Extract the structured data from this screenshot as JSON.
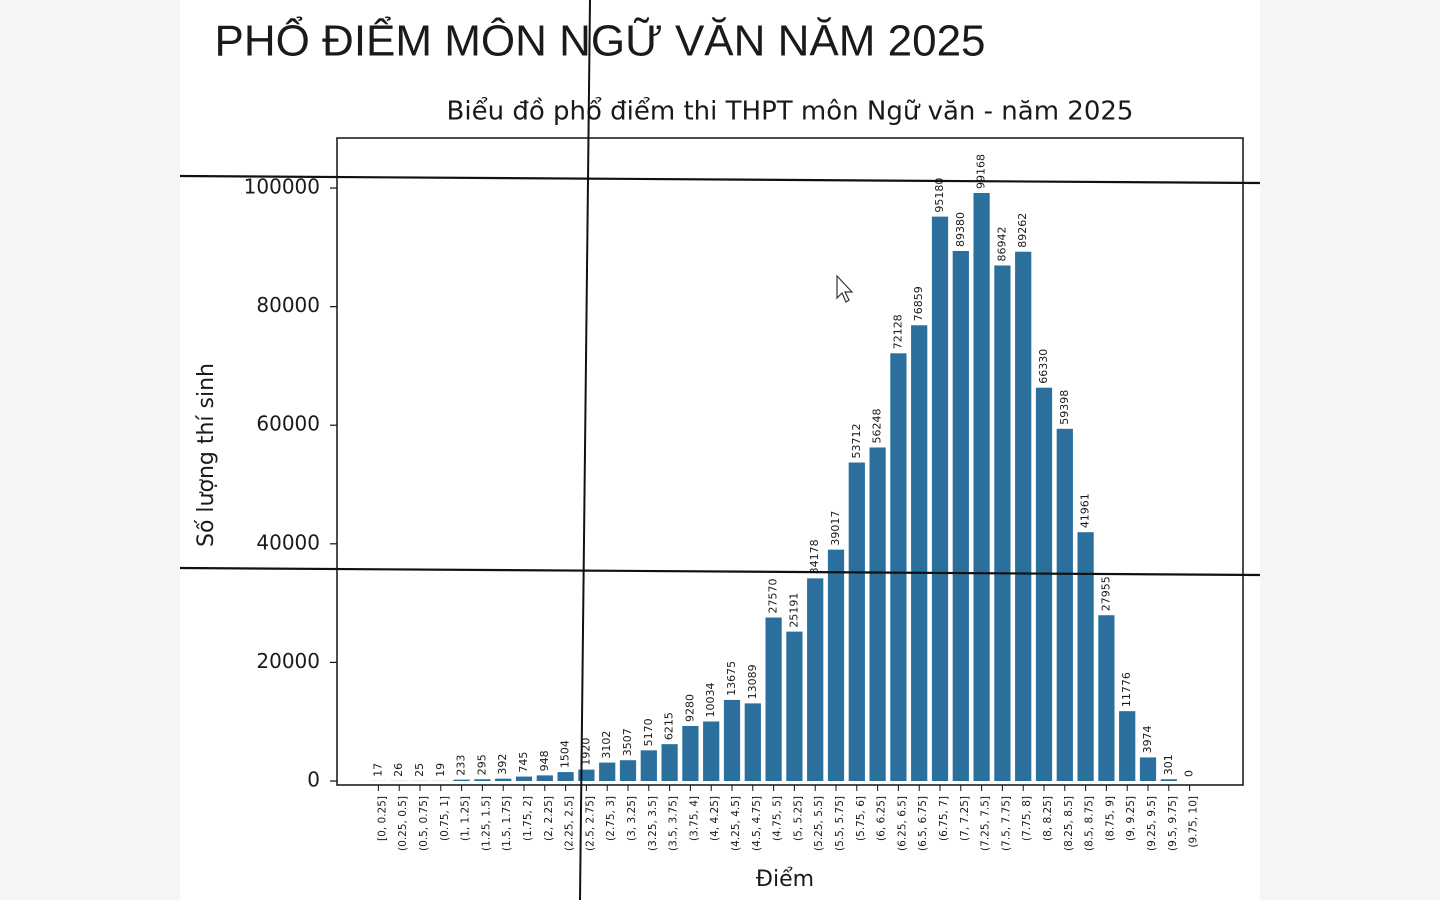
{
  "heading": "PHỔ ĐIỂM MÔN NGỮ VĂN NĂM 2025",
  "chart_data": {
    "type": "bar",
    "title": "Biểu đồ phổ điểm thi THPT môn Ngữ văn - năm 2025",
    "x_label": "Điểm",
    "y_label": "Số lượng thí sinh",
    "categories": [
      "[0, 0.25]",
      "(0.25, 0.5]",
      "(0.5, 0.75]",
      "(0.75, 1]",
      "(1, 1.25]",
      "(1.25, 1.5]",
      "(1.5, 1.75]",
      "(1.75, 2]",
      "(2, 2.25]",
      "(2.25, 2.5]",
      "(2.5, 2.75]",
      "(2.75, 3]",
      "(3, 3.25]",
      "(3.25, 3.5]",
      "(3.5, 3.75]",
      "(3.75, 4]",
      "(4, 4.25]",
      "(4.25, 4.5]",
      "(4.5, 4.75]",
      "(4.75, 5]",
      "(5, 5.25]",
      "(5.25, 5.5]",
      "(5.5, 5.75]",
      "(5.75, 6]",
      "(6, 6.25]",
      "(6.25, 6.5]",
      "(6.5, 6.75]",
      "(6.75, 7]",
      "(7, 7.25]",
      "(7.25, 7.5]",
      "(7.5, 7.75]",
      "(7.75, 8]",
      "(8, 8.25]",
      "(8.25, 8.5]",
      "(8.5, 8.75]",
      "(8.75, 9]",
      "(9, 9.25]",
      "(9.25, 9.5]",
      "(9.5, 9.75]",
      "(9.75, 10]"
    ],
    "values": [
      17,
      26,
      25,
      19,
      233,
      295,
      392,
      745,
      948,
      1504,
      1920,
      3102,
      3507,
      5170,
      6215,
      9280,
      10034,
      13675,
      13089,
      27570,
      25191,
      34178,
      39017,
      53712,
      56248,
      72128,
      76859,
      95180,
      89380,
      99168,
      86942,
      89262,
      66330,
      59398,
      41961,
      27955,
      11776,
      3974,
      301,
      0
    ],
    "color": "#2b6f9c",
    "ylim": [
      0,
      108000
    ],
    "yticks": [
      0,
      20000,
      40000,
      60000,
      80000,
      100000
    ]
  }
}
